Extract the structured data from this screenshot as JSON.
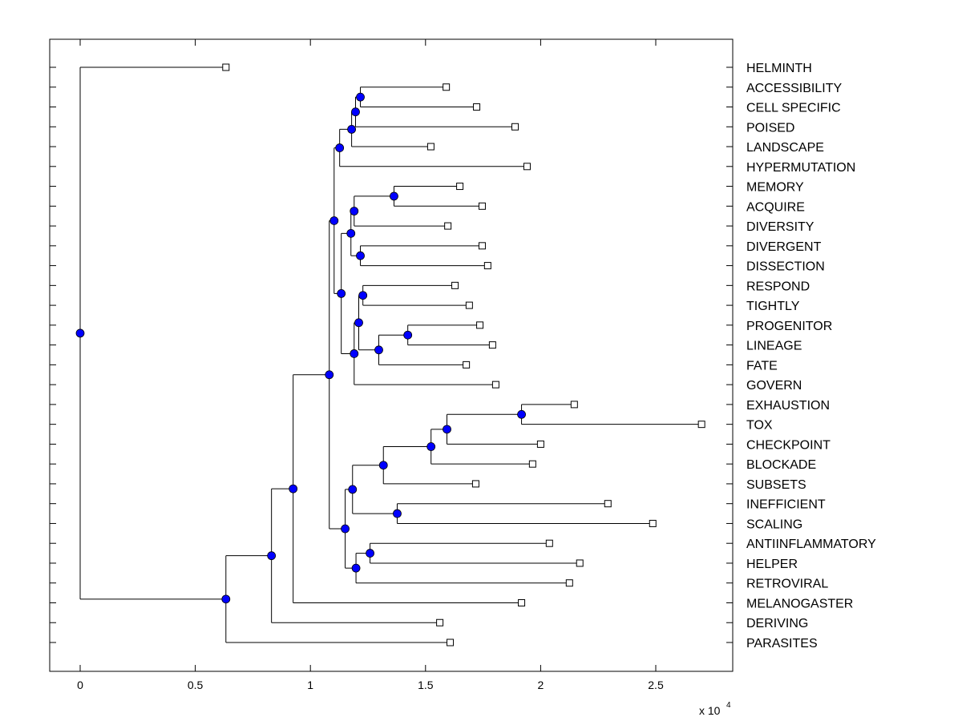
{
  "chart_data": {
    "type": "dendrogram",
    "title": "",
    "xlabel": "",
    "ylabel": "",
    "x_multiplier_label": "x 10",
    "x_multiplier_exponent": "4",
    "xlim": [
      -1350,
      28300
    ],
    "x_ticks": [
      0,
      5000,
      10000,
      15000,
      20000,
      25000
    ],
    "x_tick_labels": [
      "0",
      "0.5",
      "1",
      "1.5",
      "2",
      "2.5"
    ],
    "grid": false,
    "colors": {
      "node_fill": "#0000ff",
      "line": "#000000",
      "leaf_fill": "#ffffff"
    },
    "leaves": [
      {
        "id": "HELMINTH",
        "label": "HELMINTH",
        "x": 6330
      },
      {
        "id": "ACCESSIBILITY",
        "label": "ACCESSIBILITY",
        "x": 15900
      },
      {
        "id": "CELL_SPECIFIC",
        "label": "CELL SPECIFIC",
        "x": 17220
      },
      {
        "id": "POISED",
        "label": "POISED",
        "x": 18890
      },
      {
        "id": "LANDSCAPE",
        "label": "LANDSCAPE",
        "x": 15230
      },
      {
        "id": "HYPERMUTATION",
        "label": "HYPERMUTATION",
        "x": 19410
      },
      {
        "id": "MEMORY",
        "label": "MEMORY",
        "x": 16490
      },
      {
        "id": "ACQUIRE",
        "label": "ACQUIRE",
        "x": 17460
      },
      {
        "id": "DIVERSITY",
        "label": "DIVERSITY",
        "x": 15970
      },
      {
        "id": "DIVERGENT",
        "label": "DIVERGENT",
        "x": 17460
      },
      {
        "id": "DISSECTION",
        "label": "DISSECTION",
        "x": 17700
      },
      {
        "id": "RESPOND",
        "label": "RESPOND",
        "x": 16280
      },
      {
        "id": "TIGHTLY",
        "label": "TIGHTLY",
        "x": 16900
      },
      {
        "id": "PROGENITOR",
        "label": "PROGENITOR",
        "x": 17360
      },
      {
        "id": "LINEAGE",
        "label": "LINEAGE",
        "x": 17910
      },
      {
        "id": "FATE",
        "label": "FATE",
        "x": 16770
      },
      {
        "id": "GOVERN",
        "label": "GOVERN",
        "x": 18050
      },
      {
        "id": "EXHAUSTION",
        "label": "EXHAUSTION",
        "x": 21460
      },
      {
        "id": "TOX",
        "label": "TOX",
        "x": 26990
      },
      {
        "id": "CHECKPOINT",
        "label": "CHECKPOINT",
        "x": 20000
      },
      {
        "id": "BLOCKADE",
        "label": "BLOCKADE",
        "x": 19650
      },
      {
        "id": "SUBSETS",
        "label": "SUBSETS",
        "x": 17180
      },
      {
        "id": "INEFFICIENT",
        "label": "INEFFICIENT",
        "x": 22920
      },
      {
        "id": "SCALING",
        "label": "SCALING",
        "x": 24870
      },
      {
        "id": "ANTIINFLAMMATORY",
        "label": "ANTIINFLAMMATORY",
        "x": 20380
      },
      {
        "id": "HELPER",
        "label": "HELPER",
        "x": 21700
      },
      {
        "id": "RETROVIRAL",
        "label": "RETROVIRAL",
        "x": 21250
      },
      {
        "id": "MELANOGASTER",
        "label": "MELANOGASTER",
        "x": 19170
      },
      {
        "id": "DERIVING",
        "label": "DERIVING",
        "x": 15620
      },
      {
        "id": "PARASITES",
        "label": "PARASITES",
        "x": 16070
      }
    ],
    "internal_nodes": [
      {
        "id": "n_acc_cell",
        "x": 12170,
        "children": [
          "ACCESSIBILITY",
          "CELL_SPECIFIC"
        ]
      },
      {
        "id": "n_acc_cell_2",
        "x": 11960,
        "children": [
          "n_acc_cell",
          "n_acc_cell_dummy"
        ]
      },
      {
        "id": "n_poised",
        "x": 11790,
        "children": [
          "n_acc_cell_2",
          "POISED",
          "LANDSCAPE"
        ]
      },
      {
        "id": "n_hyper",
        "x": 11270,
        "children": [
          "n_poised",
          "HYPERMUTATION"
        ]
      },
      {
        "id": "n_mem_acq",
        "x": 13630,
        "children": [
          "MEMORY",
          "ACQUIRE"
        ]
      },
      {
        "id": "n_mem_div",
        "x": 11900,
        "children": [
          "n_mem_acq",
          "DIVERSITY"
        ]
      },
      {
        "id": "n_divg_diss",
        "x": 12170,
        "children": [
          "DIVERGENT",
          "DISSECTION"
        ]
      },
      {
        "id": "n_mem_group",
        "x": 11760,
        "children": [
          "n_mem_div",
          "n_divg_diss"
        ]
      },
      {
        "id": "n_resp_tight",
        "x": 12280,
        "children": [
          "RESPOND",
          "TIGHTLY"
        ]
      },
      {
        "id": "n_prog_lin",
        "x": 14230,
        "children": [
          "PROGENITOR",
          "LINEAGE"
        ]
      },
      {
        "id": "n_prog_fate",
        "x": 12970,
        "children": [
          "n_prog_lin",
          "FATE"
        ]
      },
      {
        "id": "n_resp_prog",
        "x": 12030,
        "children": [
          "n_resp_tight",
          "n_prog_fate_alt"
        ]
      },
      {
        "id": "n_govern",
        "x": 11900,
        "children": [
          "n_resp_prog",
          "n_prog_fate",
          "GOVERN"
        ]
      },
      {
        "id": "n_mid",
        "x": 11340,
        "children": [
          "n_mem_group",
          "n_govern"
        ]
      },
      {
        "id": "n_upper",
        "x": 11030,
        "children": [
          "n_hyper",
          "n_mid"
        ]
      },
      {
        "id": "n_exh_tox",
        "x": 19170,
        "children": [
          "EXHAUSTION",
          "TOX"
        ]
      },
      {
        "id": "n_tox_check",
        "x": 15930,
        "children": [
          "n_exh_tox",
          "CHECKPOINT"
        ]
      },
      {
        "id": "n_block",
        "x": 15240,
        "children": [
          "n_tox_check",
          "BLOCKADE"
        ]
      },
      {
        "id": "n_subsets",
        "x": 13170,
        "children": [
          "n_block",
          "SUBSETS"
        ]
      },
      {
        "id": "n_ineff_scal",
        "x": 13770,
        "children": [
          "INEFFICIENT",
          "SCALING"
        ]
      },
      {
        "id": "n_exh_group",
        "x": 11830,
        "children": [
          "n_subsets",
          "n_ineff_scal"
        ]
      },
      {
        "id": "n_anti_help",
        "x": 12590,
        "children": [
          "ANTIINFLAMMATORY",
          "HELPER"
        ]
      },
      {
        "id": "n_retro",
        "x": 11980,
        "children": [
          "n_anti_help",
          "RETROVIRAL"
        ]
      },
      {
        "id": "n_lower",
        "x": 11510,
        "children": [
          "n_exh_group",
          "n_retro"
        ]
      },
      {
        "id": "n_core",
        "x": 10820,
        "children": [
          "n_upper",
          "n_lower"
        ]
      },
      {
        "id": "n_mela",
        "x": 9250,
        "children": [
          "n_core",
          "MELANOGASTER"
        ]
      },
      {
        "id": "n_deriv",
        "x": 8310,
        "children": [
          "n_mela",
          "DERIVING"
        ]
      },
      {
        "id": "n_paras",
        "x": 6330,
        "children": [
          "n_deriv",
          "PARASITES"
        ]
      },
      {
        "id": "root",
        "x": 0,
        "children": [
          "HELMINTH",
          "n_paras"
        ]
      }
    ]
  }
}
